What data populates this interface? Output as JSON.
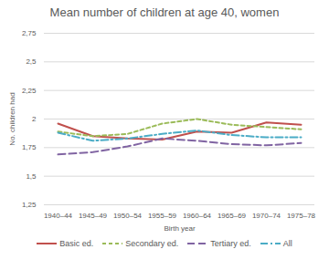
{
  "chart_data": {
    "type": "line",
    "title": "Mean number of children at age 40, women",
    "x_label": "Birth year",
    "y_label": "No. children had",
    "categories": [
      "1940–44",
      "1945–49",
      "1950–54",
      "1955–59",
      "1960–64",
      "1965–69",
      "1970–74",
      "1975–78"
    ],
    "series": [
      {
        "name": "Basic ed.",
        "color": "#c0504d",
        "line_style": "solid",
        "values": [
          1.96,
          1.85,
          1.83,
          1.82,
          1.89,
          1.88,
          1.97,
          1.95
        ]
      },
      {
        "name": "Secondary ed.",
        "color": "#9bbb59",
        "line_style": "dashed",
        "values": [
          1.89,
          1.85,
          1.87,
          1.96,
          2.0,
          1.95,
          1.93,
          1.91
        ]
      },
      {
        "name": "Tertiary ed.",
        "color": "#8064a2",
        "line_style": "longdash",
        "values": [
          1.69,
          1.71,
          1.76,
          1.83,
          1.81,
          1.78,
          1.77,
          1.79
        ]
      },
      {
        "name": "All",
        "color": "#4bacc6",
        "line_style": "dashdot",
        "values": [
          1.88,
          1.81,
          1.83,
          1.87,
          1.9,
          1.86,
          1.84,
          1.84
        ]
      }
    ],
    "ylim": [
      1.25,
      2.75
    ],
    "yticks": [
      {
        "value": 1.25,
        "label": "1,25"
      },
      {
        "value": 1.5,
        "label": "1,5"
      },
      {
        "value": 1.75,
        "label": "1,75"
      },
      2,
      {
        "value": 2.25,
        "label": "2,25"
      },
      {
        "value": 2.5,
        "label": "2,5"
      },
      {
        "value": 2.75,
        "label": "2,75"
      }
    ],
    "grid": true,
    "legend": "bottom"
  }
}
